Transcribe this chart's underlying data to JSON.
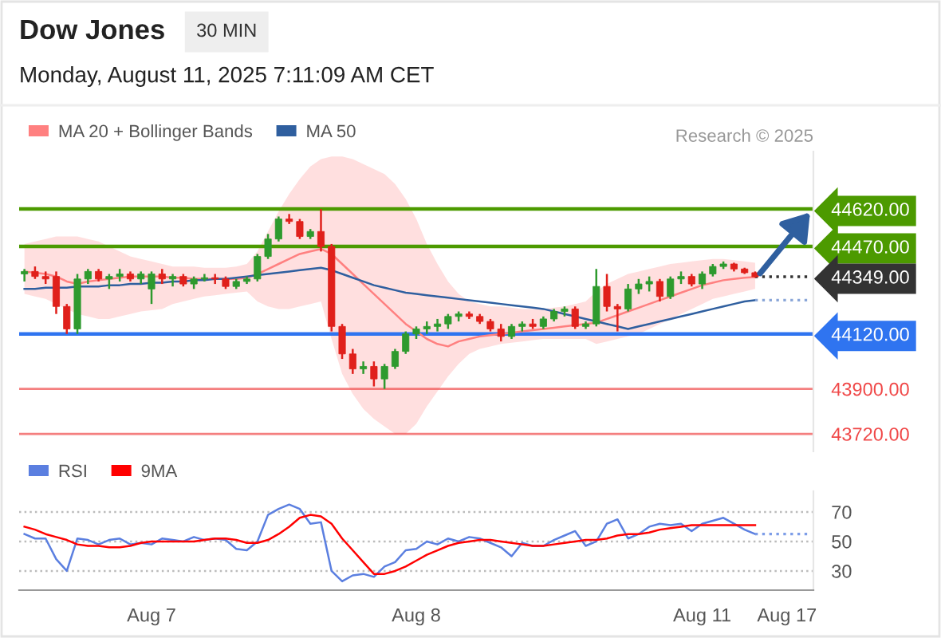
{
  "chart_data": [
    {
      "type": "candlestick",
      "title": "Dow Jones",
      "subtitle": "Monday, August 11, 2025 7:11:09 AM CET",
      "annotations": [
        "30 MIN",
        "Research © 2025"
      ],
      "categories": [
        null,
        null,
        null,
        null,
        null,
        null,
        null,
        null,
        null,
        null,
        null,
        null,
        null,
        null,
        null,
        null,
        null,
        null,
        null,
        null,
        null,
        null,
        null,
        null,
        null,
        null,
        null,
        null,
        null,
        null,
        null,
        null,
        null,
        null,
        null,
        null,
        null,
        null,
        null,
        null,
        null,
        null,
        null,
        null,
        null,
        null,
        null,
        null,
        null,
        null,
        null,
        null,
        null,
        null,
        null,
        null,
        null,
        null,
        null,
        null,
        null,
        null,
        null,
        null,
        null,
        null,
        null,
        null,
        null,
        null,
        null,
        null,
        null,
        null,
        null
      ],
      "ohlc": [
        [
          44360,
          44380,
          44330,
          44370
        ],
        [
          44370,
          44390,
          44340,
          44350
        ],
        [
          44350,
          44370,
          44320,
          44340
        ],
        [
          44350,
          44370,
          44200,
          44230
        ],
        [
          44230,
          44240,
          44120,
          44140
        ],
        [
          44140,
          44360,
          44120,
          44340
        ],
        [
          44340,
          44380,
          44320,
          44370
        ],
        [
          44370,
          44380,
          44330,
          44340
        ],
        [
          44340,
          44360,
          44300,
          44350
        ],
        [
          44350,
          44380,
          44330,
          44360
        ],
        [
          44360,
          44370,
          44330,
          44340
        ],
        [
          44340,
          44370,
          44320,
          44360
        ],
        [
          44300,
          44370,
          44240,
          44360
        ],
        [
          44360,
          44380,
          44320,
          44340
        ],
        [
          44340,
          44360,
          44310,
          44350
        ],
        [
          44350,
          44360,
          44310,
          44320
        ],
        [
          44320,
          44350,
          44300,
          44340
        ],
        [
          44340,
          44360,
          44330,
          44345
        ],
        [
          44345,
          44360,
          44320,
          44340
        ],
        [
          44340,
          44350,
          44300,
          44310
        ],
        [
          44310,
          44340,
          44300,
          44330
        ],
        [
          44330,
          44350,
          44320,
          44340
        ],
        [
          44340,
          44440,
          44330,
          44430
        ],
        [
          44430,
          44520,
          44420,
          44500
        ],
        [
          44500,
          44590,
          44490,
          44580
        ],
        [
          44580,
          44600,
          44560,
          44570
        ],
        [
          44570,
          44580,
          44500,
          44510
        ],
        [
          44510,
          44540,
          44500,
          44530
        ],
        [
          44530,
          44620,
          44450,
          44470
        ],
        [
          44470,
          44480,
          44130,
          44150
        ],
        [
          44150,
          44160,
          44020,
          44040
        ],
        [
          44040,
          44060,
          43960,
          43980
        ],
        [
          43980,
          44010,
          43960,
          43990
        ],
        [
          43990,
          44010,
          43910,
          43940
        ],
        [
          43940,
          44000,
          43900,
          43990
        ],
        [
          43990,
          44060,
          43980,
          44050
        ],
        [
          44050,
          44130,
          44040,
          44120
        ],
        [
          44120,
          44150,
          44100,
          44140
        ],
        [
          44140,
          44170,
          44120,
          44150
        ],
        [
          44150,
          44180,
          44130,
          44160
        ],
        [
          44160,
          44200,
          44140,
          44190
        ],
        [
          44190,
          44210,
          44170,
          44200
        ],
        [
          44200,
          44210,
          44180,
          44190
        ],
        [
          44190,
          44200,
          44160,
          44170
        ],
        [
          44170,
          44180,
          44130,
          44140
        ],
        [
          44140,
          44160,
          44090,
          44110
        ],
        [
          44110,
          44160,
          44100,
          44150
        ],
        [
          44150,
          44170,
          44130,
          44160
        ],
        [
          44160,
          44180,
          44140,
          44150
        ],
        [
          44150,
          44190,
          44140,
          44180
        ],
        [
          44180,
          44220,
          44170,
          44210
        ],
        [
          44210,
          44230,
          44190,
          44220
        ],
        [
          44220,
          44230,
          44140,
          44150
        ],
        [
          44150,
          44170,
          44140,
          44160
        ],
        [
          44160,
          44380,
          44150,
          44310
        ],
        [
          44310,
          44360,
          44210,
          44230
        ],
        [
          44230,
          44240,
          44130,
          44220
        ],
        [
          44220,
          44320,
          44210,
          44300
        ],
        [
          44300,
          44340,
          44280,
          44320
        ],
        [
          44320,
          44350,
          44290,
          44330
        ],
        [
          44330,
          44340,
          44250,
          44270
        ],
        [
          44270,
          44350,
          44260,
          44340
        ],
        [
          44340,
          44370,
          44320,
          44350
        ],
        [
          44350,
          44360,
          44310,
          44320
        ],
        [
          44320,
          44370,
          44300,
          44360
        ],
        [
          44360,
          44400,
          44350,
          44390
        ],
        [
          44390,
          44410,
          44380,
          44400
        ],
        [
          44400,
          44405,
          44370,
          44380
        ],
        [
          44380,
          44385,
          44360,
          44365
        ],
        [
          44365,
          44370,
          44345,
          44349
        ],
        null,
        null,
        null,
        null,
        null
      ],
      "series": [
        {
          "name": "MA 20 + Bollinger Bands",
          "type": "line",
          "color": "#ff8080",
          "values": [
            44370,
            44365,
            44360,
            44350,
            44330,
            44320,
            44330,
            44335,
            44340,
            44345,
            44350,
            44350,
            44350,
            44350,
            44345,
            44345,
            44340,
            44340,
            44340,
            44340,
            44340,
            44345,
            44360,
            44380,
            44400,
            44420,
            44440,
            44450,
            44460,
            44440,
            44400,
            44360,
            44320,
            44280,
            44240,
            44200,
            44160,
            44130,
            44100,
            44080,
            44070,
            44090,
            44100,
            44110,
            44115,
            44120,
            44125,
            44130,
            44135,
            44140,
            44145,
            44150,
            44155,
            44160,
            44165,
            44180,
            44195,
            44210,
            44225,
            44240,
            44255,
            44270,
            44285,
            44300,
            44315,
            44325,
            44335,
            44340,
            44345,
            44348,
            null,
            null,
            null,
            null,
            null
          ],
          "upper": [
            44480,
            44490,
            44500,
            44510,
            44510,
            44510,
            44500,
            44490,
            44470,
            44450,
            44430,
            44420,
            44410,
            44400,
            44390,
            44390,
            44390,
            44385,
            44385,
            44385,
            44390,
            44400,
            44450,
            44530,
            44610,
            44680,
            44740,
            44790,
            44820,
            44830,
            44830,
            44820,
            44800,
            44780,
            44760,
            44720,
            44660,
            44580,
            44480,
            44400,
            44330,
            44280,
            44250,
            44240,
            44230,
            44230,
            44225,
            44220,
            44220,
            44220,
            44225,
            44230,
            44240,
            44250,
            44290,
            44320,
            44340,
            44360,
            44370,
            44380,
            44390,
            44400,
            44405,
            44410,
            44415,
            44420,
            44420,
            44415,
            44410,
            44405,
            null,
            null,
            null,
            null,
            null
          ],
          "lower": [
            44280,
            44270,
            44260,
            44240,
            44220,
            44200,
            44190,
            44180,
            44180,
            44190,
            44200,
            44210,
            44215,
            44220,
            44240,
            44250,
            44260,
            44270,
            44275,
            44280,
            44285,
            44290,
            44250,
            44230,
            44220,
            44220,
            44230,
            44240,
            44250,
            44100,
            43960,
            43880,
            43820,
            43780,
            43750,
            43720,
            43720,
            43760,
            43830,
            43890,
            43950,
            44000,
            44040,
            44060,
            44070,
            44080,
            44085,
            44090,
            44095,
            44100,
            44100,
            44100,
            44100,
            44100,
            44080,
            44090,
            44100,
            44110,
            44120,
            44140,
            44160,
            44180,
            44200,
            44220,
            44240,
            44260,
            44270,
            44280,
            44290,
            44300,
            null,
            null,
            null,
            null,
            null
          ]
        },
        {
          "name": "MA 50",
          "type": "line",
          "color": "#2f5f9f",
          "values": [
            44300,
            44300,
            44305,
            44305,
            44305,
            44310,
            44310,
            44310,
            44315,
            44315,
            44320,
            44320,
            44325,
            44325,
            44330,
            44330,
            44335,
            44335,
            44340,
            44340,
            44345,
            44350,
            44355,
            44360,
            44365,
            44370,
            44375,
            44380,
            44385,
            44375,
            44360,
            44345,
            44330,
            44315,
            44305,
            44295,
            44285,
            44280,
            44275,
            44270,
            44265,
            44260,
            44255,
            44250,
            44245,
            44240,
            44235,
            44230,
            44225,
            44220,
            44210,
            44200,
            44190,
            44180,
            44170,
            44160,
            44150,
            44140,
            44150,
            44160,
            44170,
            44180,
            44190,
            44200,
            44210,
            44220,
            44230,
            44240,
            44250,
            44255,
            null,
            null,
            null,
            null,
            null
          ]
        },
        {
          "type": "line",
          "color": "#333333",
          "line_style": "dotted",
          "values": [
            null,
            null,
            null,
            null,
            null,
            null,
            null,
            null,
            null,
            null,
            null,
            null,
            null,
            null,
            null,
            null,
            null,
            null,
            null,
            null,
            null,
            null,
            null,
            null,
            null,
            null,
            null,
            null,
            null,
            null,
            null,
            null,
            null,
            null,
            null,
            null,
            null,
            null,
            null,
            null,
            null,
            null,
            null,
            null,
            null,
            null,
            null,
            null,
            null,
            null,
            null,
            null,
            null,
            null,
            null,
            null,
            null,
            null,
            null,
            null,
            null,
            null,
            null,
            null,
            null,
            null,
            null,
            null,
            null,
            44349,
            44349,
            44349,
            44349,
            44349,
            44349
          ]
        },
        {
          "type": "line",
          "color": "#8aa6d8",
          "line_style": "dotted",
          "values": [
            null,
            null,
            null,
            null,
            null,
            null,
            null,
            null,
            null,
            null,
            null,
            null,
            null,
            null,
            null,
            null,
            null,
            null,
            null,
            null,
            null,
            null,
            null,
            null,
            null,
            null,
            null,
            null,
            null,
            null,
            null,
            null,
            null,
            null,
            null,
            null,
            null,
            null,
            null,
            null,
            null,
            null,
            null,
            null,
            null,
            null,
            null,
            null,
            null,
            null,
            null,
            null,
            null,
            null,
            null,
            null,
            null,
            null,
            null,
            null,
            null,
            null,
            null,
            null,
            null,
            null,
            null,
            null,
            null,
            44255,
            44255,
            44255,
            44255,
            44255,
            44255
          ]
        }
      ],
      "yticks": [
        {
          "value": 44620,
          "label": "44620.00"
        },
        {
          "value": 44470,
          "label": "44470.00"
        },
        {
          "value": 44349,
          "label": "44349.00"
        },
        {
          "value": 44120,
          "label": "44120.00"
        },
        {
          "value": 43900,
          "label": "43900.00"
        },
        {
          "value": 43720,
          "label": "43720.00"
        }
      ],
      "ref_lines": [
        {
          "axis": "y",
          "value": 44620,
          "color": "#4c9a00",
          "line_style": "solid"
        },
        {
          "axis": "y",
          "value": 44470,
          "color": "#4c9a00",
          "line_style": "solid"
        },
        {
          "axis": "y",
          "value": 44120,
          "color": "#2f74f0",
          "line_style": "solid"
        },
        {
          "axis": "y",
          "value": 43900,
          "color": "#f04848"
        },
        {
          "axis": "y",
          "value": 43720,
          "color": "#f04848"
        }
      ],
      "ylim": [
        43650,
        44850
      ],
      "legend": "top left",
      "tick_labels": "y"
    },
    {
      "type": "line",
      "categories": [
        null,
        null,
        null,
        null,
        null,
        null,
        null,
        null,
        null,
        null,
        null,
        null,
        "Aug 7",
        null,
        null,
        null,
        null,
        null,
        null,
        null,
        null,
        null,
        null,
        null,
        null,
        null,
        null,
        null,
        null,
        null,
        null,
        null,
        null,
        null,
        null,
        null,
        null,
        "Aug 8",
        null,
        null,
        null,
        null,
        null,
        null,
        null,
        null,
        null,
        null,
        null,
        null,
        null,
        null,
        null,
        null,
        null,
        null,
        null,
        null,
        null,
        null,
        null,
        null,
        null,
        null,
        "Aug 11",
        null,
        null,
        null,
        null,
        null,
        null,
        null,
        "Aug 17",
        null,
        null
      ],
      "series": [
        {
          "name": "RSI",
          "color": "#5b7fe0",
          "values": [
            55,
            52,
            52,
            38,
            30,
            52,
            51,
            48,
            51,
            52,
            48,
            49,
            48,
            52,
            51,
            50,
            53,
            51,
            52,
            51,
            45,
            44,
            50,
            68,
            72,
            75,
            72,
            62,
            63,
            30,
            23,
            27,
            28,
            26,
            33,
            36,
            44,
            45,
            50,
            48,
            52,
            50,
            53,
            52,
            49,
            46,
            40,
            49,
            47,
            47,
            51,
            54,
            57,
            47,
            50,
            62,
            65,
            52,
            55,
            60,
            62,
            61,
            62,
            57,
            62,
            64,
            66,
            62,
            58,
            55,
            null,
            null,
            null,
            null,
            null
          ]
        },
        {
          "name": "9MA",
          "color": "#ff0000",
          "values": [
            60,
            58,
            55,
            53,
            51,
            48,
            47,
            47,
            46,
            46,
            47,
            49,
            50,
            50,
            50,
            50,
            50,
            51,
            52,
            52,
            51,
            49,
            49,
            51,
            55,
            60,
            66,
            68,
            67,
            62,
            52,
            44,
            36,
            28,
            28,
            30,
            33,
            37,
            41,
            44,
            47,
            49,
            50,
            51,
            51,
            50,
            49,
            48,
            47,
            47,
            48,
            49,
            50,
            51,
            51,
            52,
            54,
            55,
            55,
            56,
            58,
            59,
            60,
            61,
            61,
            61,
            61,
            61,
            61,
            61,
            null,
            null,
            null,
            null,
            null
          ]
        },
        {
          "type": "line",
          "color": "#7d9de8",
          "line_style": "dotted",
          "values": [
            null,
            null,
            null,
            null,
            null,
            null,
            null,
            null,
            null,
            null,
            null,
            null,
            null,
            null,
            null,
            null,
            null,
            null,
            null,
            null,
            null,
            null,
            null,
            null,
            null,
            null,
            null,
            null,
            null,
            null,
            null,
            null,
            null,
            null,
            null,
            null,
            null,
            null,
            null,
            null,
            null,
            null,
            null,
            null,
            null,
            null,
            null,
            null,
            null,
            null,
            null,
            null,
            null,
            null,
            null,
            null,
            null,
            null,
            null,
            null,
            null,
            null,
            null,
            null,
            null,
            null,
            null,
            null,
            null,
            55,
            55,
            55,
            55,
            55,
            55
          ]
        }
      ],
      "ylim": [
        17,
        84
      ],
      "yticks": [
        30,
        50,
        70
      ],
      "grid": "y",
      "legend": "top left"
    }
  ]
}
